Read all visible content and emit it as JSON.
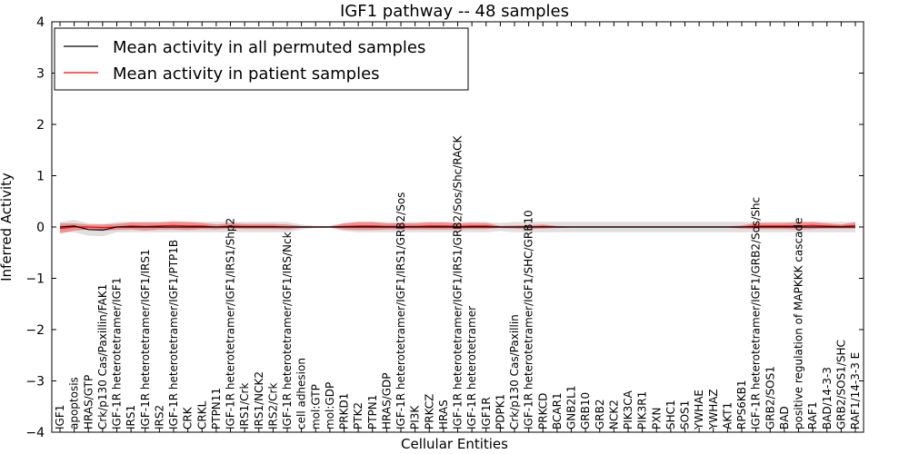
{
  "chart_data": {
    "type": "line",
    "title": "IGF1 pathway -- 48 samples",
    "xlabel": "Cellular Entities",
    "ylabel": "Inferred Activity",
    "ylim": [
      -4,
      4
    ],
    "yticks": [
      -4,
      -3,
      -2,
      -1,
      0,
      1,
      2,
      3,
      4
    ],
    "ytick_labels": [
      "−4",
      "−3",
      "−2",
      "−1",
      "0",
      "1",
      "2",
      "3",
      "4"
    ],
    "legend_position": "top-left",
    "categories": [
      "IGF1",
      "apoptosis",
      "HRAS/GTP",
      "Crk/p130 Cas/Paxillin/FAK1",
      "IGF-1R heterotetramer/IGF1",
      "IRS1",
      "IGF-1R heterotetramer/IGF1/IRS1",
      "IRS2",
      "IGF-1R heterotetramer/IGF1/PTP1B",
      "CRK",
      "CRKL",
      "PTPN11",
      "IGF-1R heterotetramer/IGF1/IRS1/Shp2",
      "IRS1/Crk",
      "IRS1/NCK2",
      "IRS2/Crk",
      "IGF-1R heterotetramer/IGF1/IRS/Nck",
      "cell adhesion",
      "mol:GTP",
      "mol:GDP",
      "PRKD1",
      "PTK2",
      "PTPN1",
      "HRAS/GDP",
      "IGF-1R heterotetramer/IGF1/IRS1/GRB2/Sos",
      "PI3K",
      "PRKCZ",
      "HRAS",
      "IGF-1R heterotetramer/IGF1/IRS1/GRB2/Sos/Shc/RACK",
      "IGF-1R heterotetramer",
      "IGF1R",
      "PDPK1",
      "Crk/p130 Cas/Paxillin",
      "IGF-1R heterotetramer/IGF1/SHC/GRB10",
      "PRKCD",
      "BCAR1",
      "GNB2L1",
      "GRB10",
      "GRB2",
      "NCK2",
      "PIK3CA",
      "PIK3R1",
      "PXN",
      "SHC1",
      "SOS1",
      "YWHAE",
      "YWHAZ",
      "AKT1",
      "RPS6KB1",
      "IGF-1R heterotetramer/IGF1/GRB2/Sos/Shc",
      "GRB2/SOS1",
      "BAD",
      "positive regulation of MAPKKK cascade",
      "RAF1",
      "BAD/14-3-3",
      "GRB2/SOS1/SHC",
      "RAF1/14-3-3 E"
    ],
    "series": [
      {
        "name": "Mean activity in all permuted samples",
        "color": "#000000",
        "values": [
          0.0,
          0.02,
          -0.05,
          -0.06,
          0.0,
          0.0,
          0.0,
          0.0,
          0.0,
          0.0,
          0.0,
          0.0,
          0.0,
          0.0,
          0.0,
          0.0,
          0.0,
          0.0,
          0.0,
          0.0,
          0.0,
          0.0,
          0.0,
          0.0,
          0.0,
          0.0,
          0.0,
          0.0,
          0.0,
          0.0,
          0.0,
          0.0,
          0.0,
          0.0,
          0.0,
          0.0,
          0.0,
          0.0,
          0.0,
          0.0,
          0.0,
          0.0,
          0.0,
          0.0,
          0.0,
          0.0,
          0.0,
          0.0,
          0.0,
          0.0,
          0.0,
          0.0,
          0.0,
          0.0,
          0.0,
          0.0,
          0.0
        ],
        "band": [
          0.1,
          0.12,
          0.12,
          0.12,
          0.1,
          0.1,
          0.1,
          0.1,
          0.1,
          0.1,
          0.1,
          0.1,
          0.1,
          0.1,
          0.1,
          0.1,
          0.1,
          0.05,
          0.02,
          0.02,
          0.08,
          0.1,
          0.1,
          0.1,
          0.1,
          0.1,
          0.1,
          0.1,
          0.1,
          0.1,
          0.1,
          0.08,
          0.1,
          0.1,
          0.1,
          0.1,
          0.1,
          0.1,
          0.1,
          0.1,
          0.1,
          0.1,
          0.1,
          0.1,
          0.1,
          0.1,
          0.1,
          0.1,
          0.1,
          0.1,
          0.1,
          0.1,
          0.1,
          0.1,
          0.1,
          0.1,
          0.1
        ]
      },
      {
        "name": "Mean activity in patient samples",
        "color": "#ff0000",
        "values": [
          -0.03,
          0.0,
          0.0,
          -0.01,
          0.0,
          0.02,
          0.01,
          0.02,
          0.03,
          0.02,
          0.02,
          0.0,
          0.02,
          0.01,
          0.01,
          0.01,
          0.0,
          0.0,
          0.0,
          0.0,
          0.01,
          0.02,
          0.02,
          0.01,
          0.01,
          0.01,
          0.02,
          0.02,
          0.01,
          0.02,
          0.02,
          0.0,
          0.0,
          0.0,
          0.01,
          0.0,
          0.0,
          0.0,
          0.0,
          0.0,
          0.0,
          0.0,
          0.0,
          0.0,
          0.0,
          0.0,
          0.0,
          0.0,
          0.0,
          0.02,
          0.02,
          0.02,
          0.02,
          0.03,
          0.02,
          0.01,
          0.03
        ],
        "band": [
          0.1,
          0.07,
          0.05,
          0.06,
          0.06,
          0.07,
          0.08,
          0.07,
          0.08,
          0.08,
          0.06,
          0.05,
          0.05,
          0.05,
          0.05,
          0.05,
          0.05,
          0.02,
          0.01,
          0.01,
          0.06,
          0.08,
          0.08,
          0.06,
          0.06,
          0.06,
          0.07,
          0.07,
          0.06,
          0.06,
          0.06,
          0.02,
          0.03,
          0.04,
          0.04,
          0.02,
          0.01,
          0.01,
          0.01,
          0.01,
          0.01,
          0.01,
          0.01,
          0.01,
          0.01,
          0.01,
          0.01,
          0.01,
          0.03,
          0.06,
          0.06,
          0.06,
          0.07,
          0.07,
          0.05,
          0.04,
          0.06
        ]
      }
    ]
  }
}
